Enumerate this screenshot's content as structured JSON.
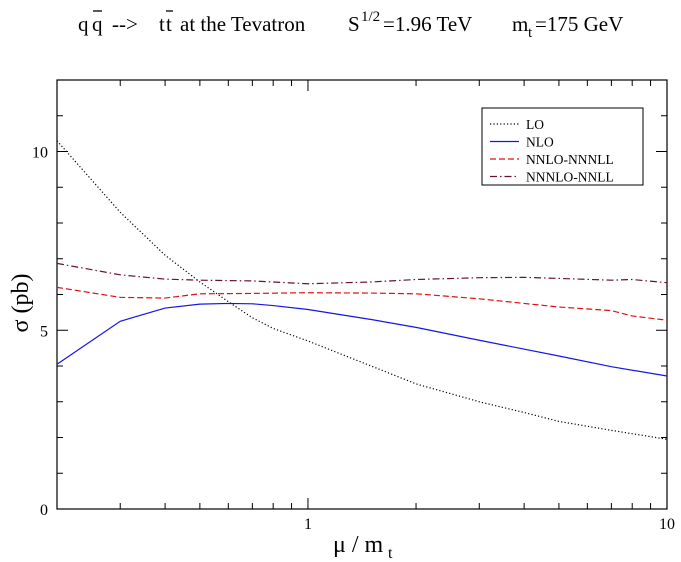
{
  "chart_data": {
    "type": "line",
    "title": {
      "process": "q̅q -->  t̅t",
      "process_parts": [
        "q",
        "q",
        "-->",
        "t",
        "t"
      ],
      "venue": "at the Tevatron",
      "energy_symbol": "S",
      "energy_exponent": "1/2",
      "energy_value": "=1.96 TeV",
      "mass_symbol": "m",
      "mass_subscript": "t",
      "mass_value": "=175 GeV"
    },
    "xlabel": {
      "symbol": "μ / m",
      "subscript": "t"
    },
    "ylabel": "σ  (pb)",
    "x_scale": "log",
    "xlim": [
      0.2,
      10
    ],
    "ylim": [
      0,
      12
    ],
    "x_tick_labels": [
      {
        "value": 1,
        "label": "1"
      },
      {
        "value": 10,
        "label": "10"
      }
    ],
    "y_tick_labels": [
      {
        "value": 0,
        "label": "0"
      },
      {
        "value": 5,
        "label": "5"
      },
      {
        "value": 10,
        "label": "10"
      }
    ],
    "legend_position": "top-right",
    "series": [
      {
        "name": "LO",
        "color": "#000000",
        "dash": "dotted",
        "x": [
          0.2,
          0.3,
          0.4,
          0.5,
          0.6,
          0.7,
          0.8,
          1.0,
          1.5,
          2.0,
          3.0,
          4.0,
          5.0,
          7.0,
          10.0
        ],
        "y": [
          10.3,
          8.3,
          7.1,
          6.35,
          5.8,
          5.35,
          5.05,
          4.7,
          4.0,
          3.5,
          3.0,
          2.7,
          2.45,
          2.2,
          1.95
        ]
      },
      {
        "name": "NLO",
        "color": "#1515e8",
        "dash": "solid",
        "x": [
          0.2,
          0.3,
          0.4,
          0.5,
          0.6,
          0.7,
          0.8,
          1.0,
          1.5,
          2.0,
          3.0,
          5.0,
          7.0,
          10.0
        ],
        "y": [
          4.05,
          5.25,
          5.62,
          5.73,
          5.75,
          5.74,
          5.69,
          5.58,
          5.3,
          5.08,
          4.72,
          4.28,
          3.98,
          3.72
        ]
      },
      {
        "name": "NNLO-NNNLL",
        "color": "#e01010",
        "dash": "dashed",
        "x": [
          0.2,
          0.3,
          0.4,
          0.5,
          0.7,
          1.0,
          1.5,
          2.0,
          3.0,
          4.0,
          5.0,
          7.0,
          8.0,
          10.0
        ],
        "y": [
          6.2,
          5.92,
          5.9,
          6.02,
          6.03,
          6.05,
          6.04,
          6.02,
          5.88,
          5.75,
          5.65,
          5.55,
          5.4,
          5.28
        ]
      },
      {
        "name": "NNNLO-NNLL",
        "color": "#6a1030",
        "dash": "dashdot",
        "x": [
          0.2,
          0.3,
          0.4,
          0.5,
          0.7,
          1.0,
          1.5,
          2.0,
          3.0,
          4.0,
          5.0,
          7.0,
          8.0,
          10.0
        ],
        "y": [
          6.87,
          6.55,
          6.43,
          6.4,
          6.38,
          6.3,
          6.35,
          6.42,
          6.47,
          6.48,
          6.45,
          6.4,
          6.42,
          6.33
        ]
      }
    ]
  }
}
